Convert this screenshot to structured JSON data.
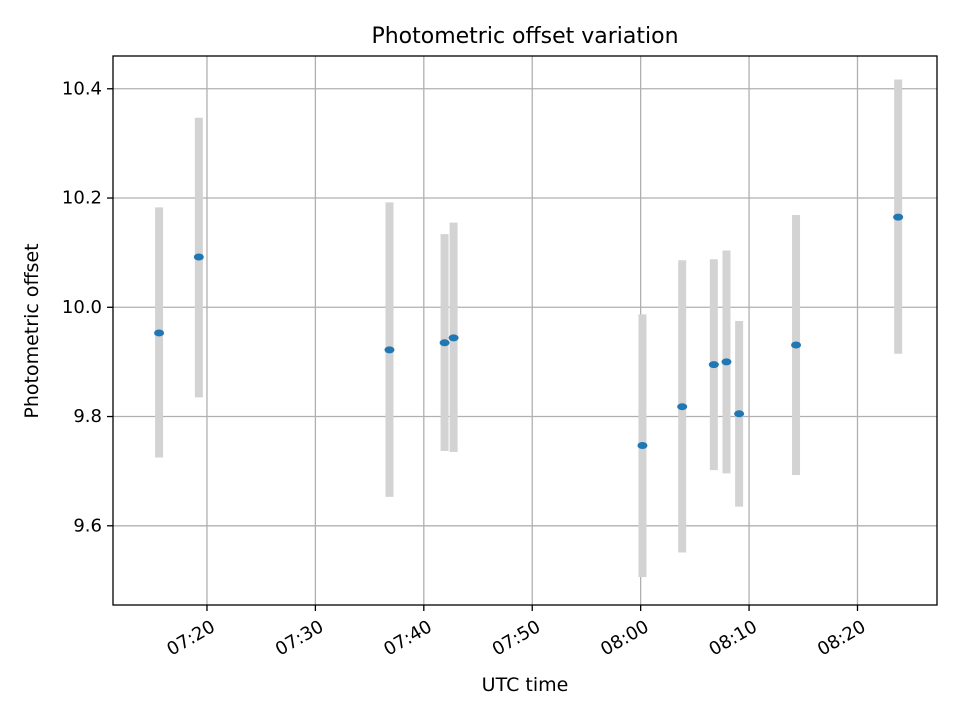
{
  "chart_data": {
    "type": "scatter",
    "title": "Photometric offset variation",
    "xlabel": "UTC time",
    "ylabel": "Photometric offset",
    "x_is_time": true,
    "xlim": [
      "07:11:20",
      "08:27:20"
    ],
    "ylim": [
      9.455,
      10.46
    ],
    "xticks": [
      "07:20",
      "07:30",
      "07:40",
      "07:50",
      "08:00",
      "08:10",
      "08:20"
    ],
    "yticks": [
      9.6,
      9.8,
      10.0,
      10.2,
      10.4
    ],
    "ytick_labels": [
      "9.6",
      "9.8",
      "10.0",
      "10.2",
      "10.4"
    ],
    "grid": true,
    "series": [
      {
        "points": [
          {
            "time": "07:15:35",
            "value": 9.953,
            "err_low": 9.725,
            "err_high": 10.183
          },
          {
            "time": "07:19:15",
            "value": 10.092,
            "err_low": 9.835,
            "err_high": 10.347
          },
          {
            "time": "07:36:50",
            "value": 9.922,
            "err_low": 9.653,
            "err_high": 10.192
          },
          {
            "time": "07:41:55",
            "value": 9.935,
            "err_low": 9.737,
            "err_high": 10.134
          },
          {
            "time": "07:42:45",
            "value": 9.944,
            "err_low": 9.735,
            "err_high": 10.155
          },
          {
            "time": "08:00:10",
            "value": 9.747,
            "err_low": 9.506,
            "err_high": 9.987
          },
          {
            "time": "08:03:50",
            "value": 9.818,
            "err_low": 9.551,
            "err_high": 10.086
          },
          {
            "time": "08:06:45",
            "value": 9.895,
            "err_low": 9.702,
            "err_high": 10.088
          },
          {
            "time": "08:07:55",
            "value": 9.9,
            "err_low": 9.696,
            "err_high": 10.104
          },
          {
            "time": "08:09:05",
            "value": 9.805,
            "err_low": 9.635,
            "err_high": 9.975
          },
          {
            "time": "08:14:20",
            "value": 9.931,
            "err_low": 9.693,
            "err_high": 10.169
          },
          {
            "time": "08:23:45",
            "value": 10.165,
            "err_low": 9.915,
            "err_high": 10.417
          }
        ]
      }
    ],
    "colors": {
      "point": "#1f77b4",
      "errorbar": "#d3d3d3",
      "grid": "#b0b0b0",
      "axes": "#000000"
    }
  }
}
